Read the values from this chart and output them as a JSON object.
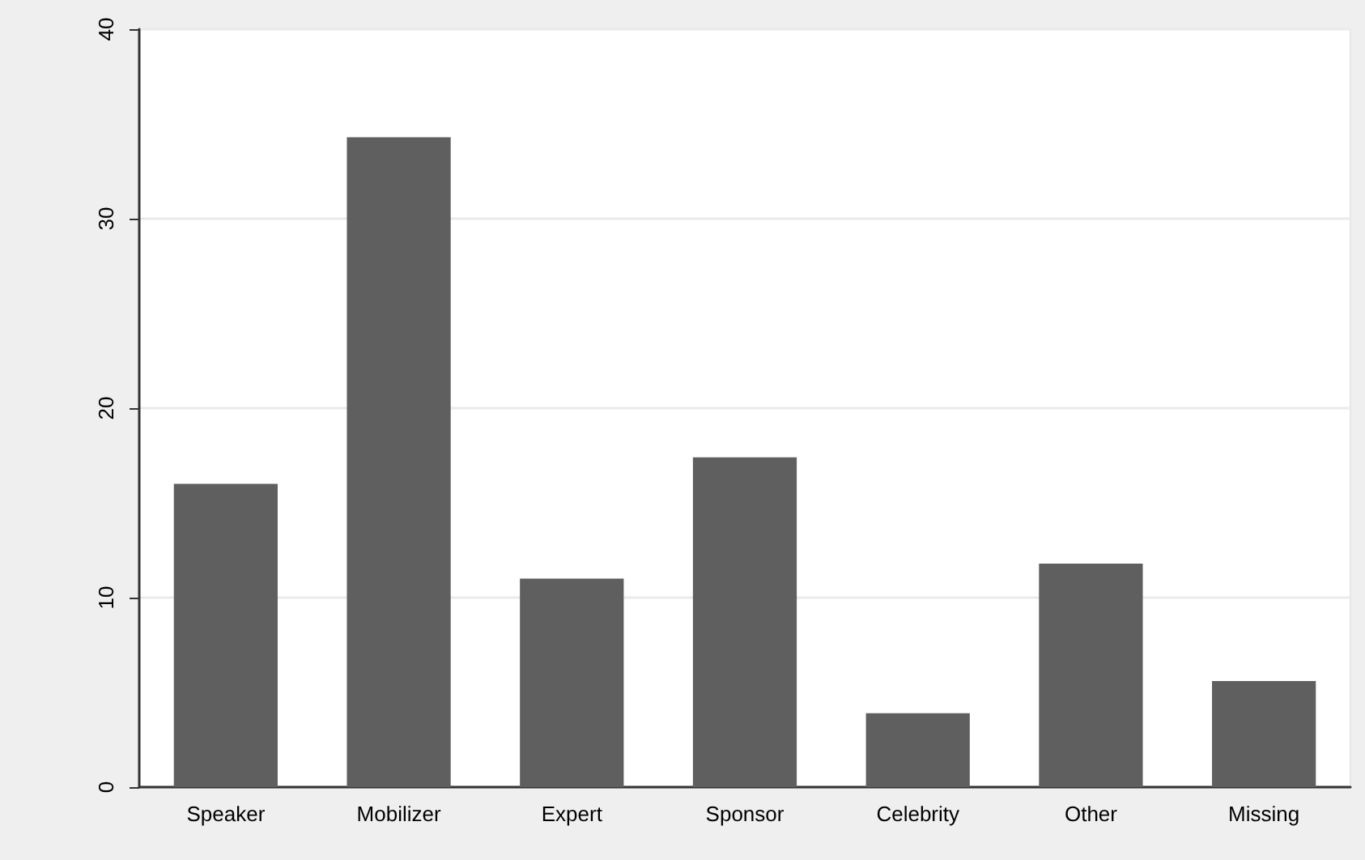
{
  "chart_data": {
    "type": "bar",
    "categories": [
      "Speaker",
      "Mobilizer",
      "Expert",
      "Sponsor",
      "Celebrity",
      "Other",
      "Missing"
    ],
    "values": [
      16.0,
      34.3,
      11.0,
      17.4,
      3.9,
      11.8,
      5.6
    ],
    "color": "#5f5f5f",
    "ylim": [
      0,
      40
    ],
    "yticks": [
      0,
      10,
      20,
      30,
      40
    ],
    "grid": "y"
  }
}
